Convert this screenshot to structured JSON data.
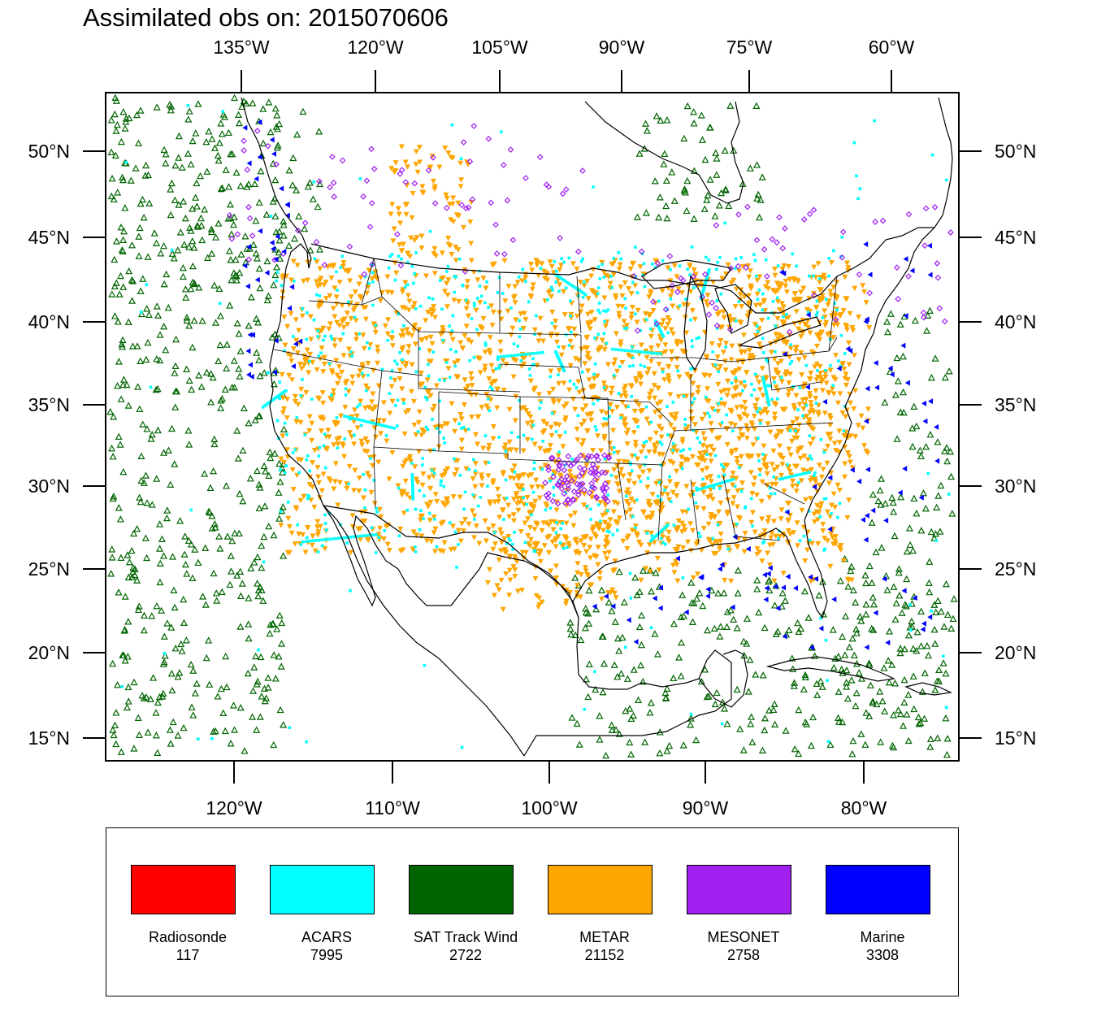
{
  "title": "Assimilated obs on: 2015070606",
  "map": {
    "top_axis_labels": [
      "135°W",
      "120°W",
      "105°W",
      "90°W",
      "75°W",
      "60°W"
    ],
    "bottom_axis_labels": [
      "120°W",
      "110°W",
      "100°W",
      "90°W",
      "80°W"
    ],
    "left_axis_labels": [
      "50°N",
      "45°N",
      "40°N",
      "35°N",
      "30°N",
      "25°N",
      "20°N",
      "15°N"
    ],
    "right_axis_labels": [
      "50°N",
      "45°N",
      "40°N",
      "35°N",
      "30°N",
      "25°N",
      "20°N",
      "15°N"
    ]
  },
  "legend": [
    {
      "label": "Radiosonde",
      "count": "117",
      "color": "#ff0000"
    },
    {
      "label": "ACARS",
      "count": "7995",
      "color": "#00ffff"
    },
    {
      "label": "SAT Track Wind",
      "count": "2722",
      "color": "#006400"
    },
    {
      "label": "METAR",
      "count": "21152",
      "color": "#ffa500"
    },
    {
      "label": "MESONET",
      "count": "2758",
      "color": "#a020f0"
    },
    {
      "label": "Marine",
      "count": "3308",
      "color": "#0000ff"
    }
  ]
}
